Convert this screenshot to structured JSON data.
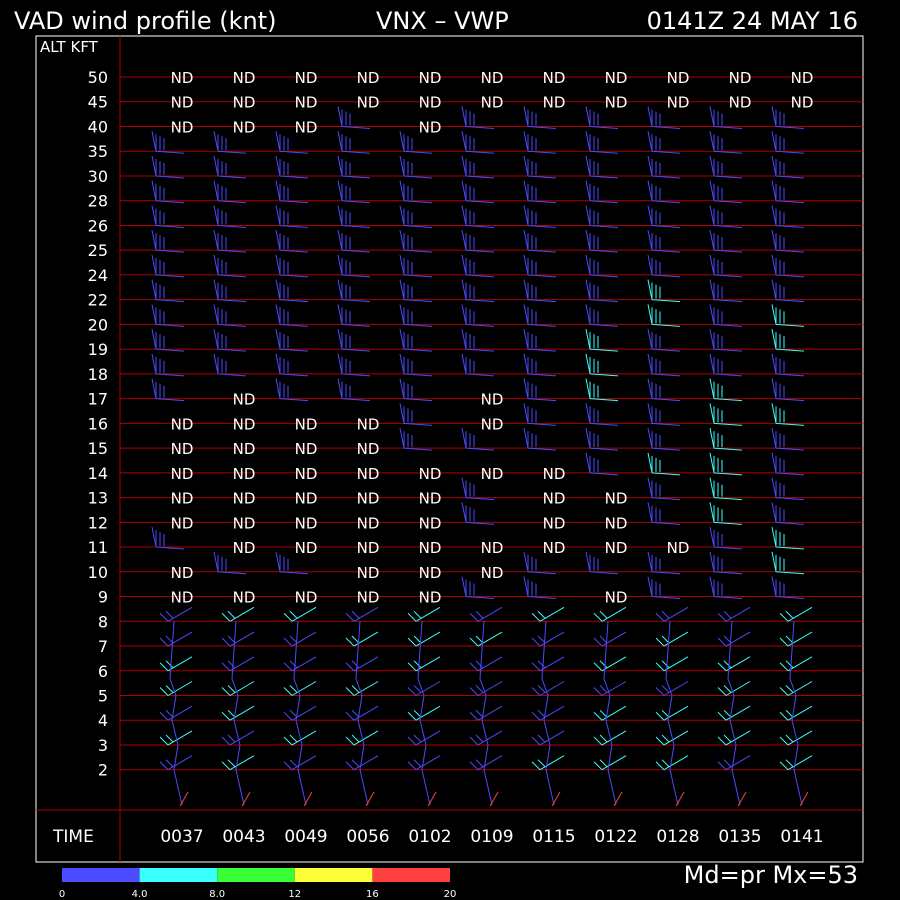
{
  "header": {
    "left": "VAD wind profile (knt)",
    "mid": "VNX – VWP",
    "right": "0141Z 24 MAY 16"
  },
  "footer": {
    "mode": "Md=pr  Mx=53"
  },
  "colors": {
    "background": "#000000",
    "grid": "#b00000",
    "border": "#ffffff",
    "text": "#ffffff"
  },
  "chart_data": {
    "type": "wind-profile",
    "y_axis_title": "ALT KFT",
    "x_axis_title": "TIME",
    "altitudes": [
      "50",
      "45",
      "40",
      "35",
      "30",
      "28",
      "26",
      "25",
      "24",
      "22",
      "20",
      "19",
      "18",
      "17",
      "16",
      "15",
      "14",
      "13",
      "12",
      "11",
      "10",
      "9",
      "8",
      "7",
      "6",
      "5",
      "4",
      "3",
      "2"
    ],
    "times": [
      "0037",
      "0043",
      "0049",
      "0056",
      "0102",
      "0109",
      "0115",
      "0122",
      "0128",
      "0135",
      "0141"
    ],
    "no_data_label": "ND",
    "nd_cells": [
      [
        "50",
        [
          0,
          1,
          2,
          3,
          4,
          5,
          6,
          7,
          8,
          9,
          10
        ]
      ],
      [
        "45",
        [
          0,
          1,
          2,
          3,
          4,
          5,
          6,
          7,
          8,
          9,
          10
        ]
      ],
      [
        "40",
        [
          0,
          1,
          2,
          4
        ]
      ],
      [
        "17",
        [
          1,
          5
        ]
      ],
      [
        "16",
        [
          0,
          1,
          2,
          3,
          5
        ]
      ],
      [
        "15",
        [
          0,
          1,
          2,
          3
        ]
      ],
      [
        "14",
        [
          0,
          1,
          2,
          3,
          4,
          5,
          6
        ]
      ],
      [
        "13",
        [
          0,
          1,
          2,
          3,
          4,
          6,
          7
        ]
      ],
      [
        "12",
        [
          0,
          1,
          2,
          3,
          4,
          6,
          7
        ]
      ],
      [
        "11",
        [
          1,
          2,
          3,
          4,
          5,
          6,
          7,
          8
        ]
      ],
      [
        "10",
        [
          0,
          3,
          4,
          5
        ]
      ],
      [
        "9",
        [
          0,
          1,
          2,
          3,
          4,
          7
        ]
      ]
    ],
    "speed_legend": {
      "unit": "knt",
      "ticks": [
        "0",
        "4.0",
        "8.0",
        "12",
        "16",
        "20"
      ],
      "colors": [
        "#4b4bff",
        "#39ffff",
        "#39ff39",
        "#ffff39",
        "#ff4040"
      ]
    }
  }
}
